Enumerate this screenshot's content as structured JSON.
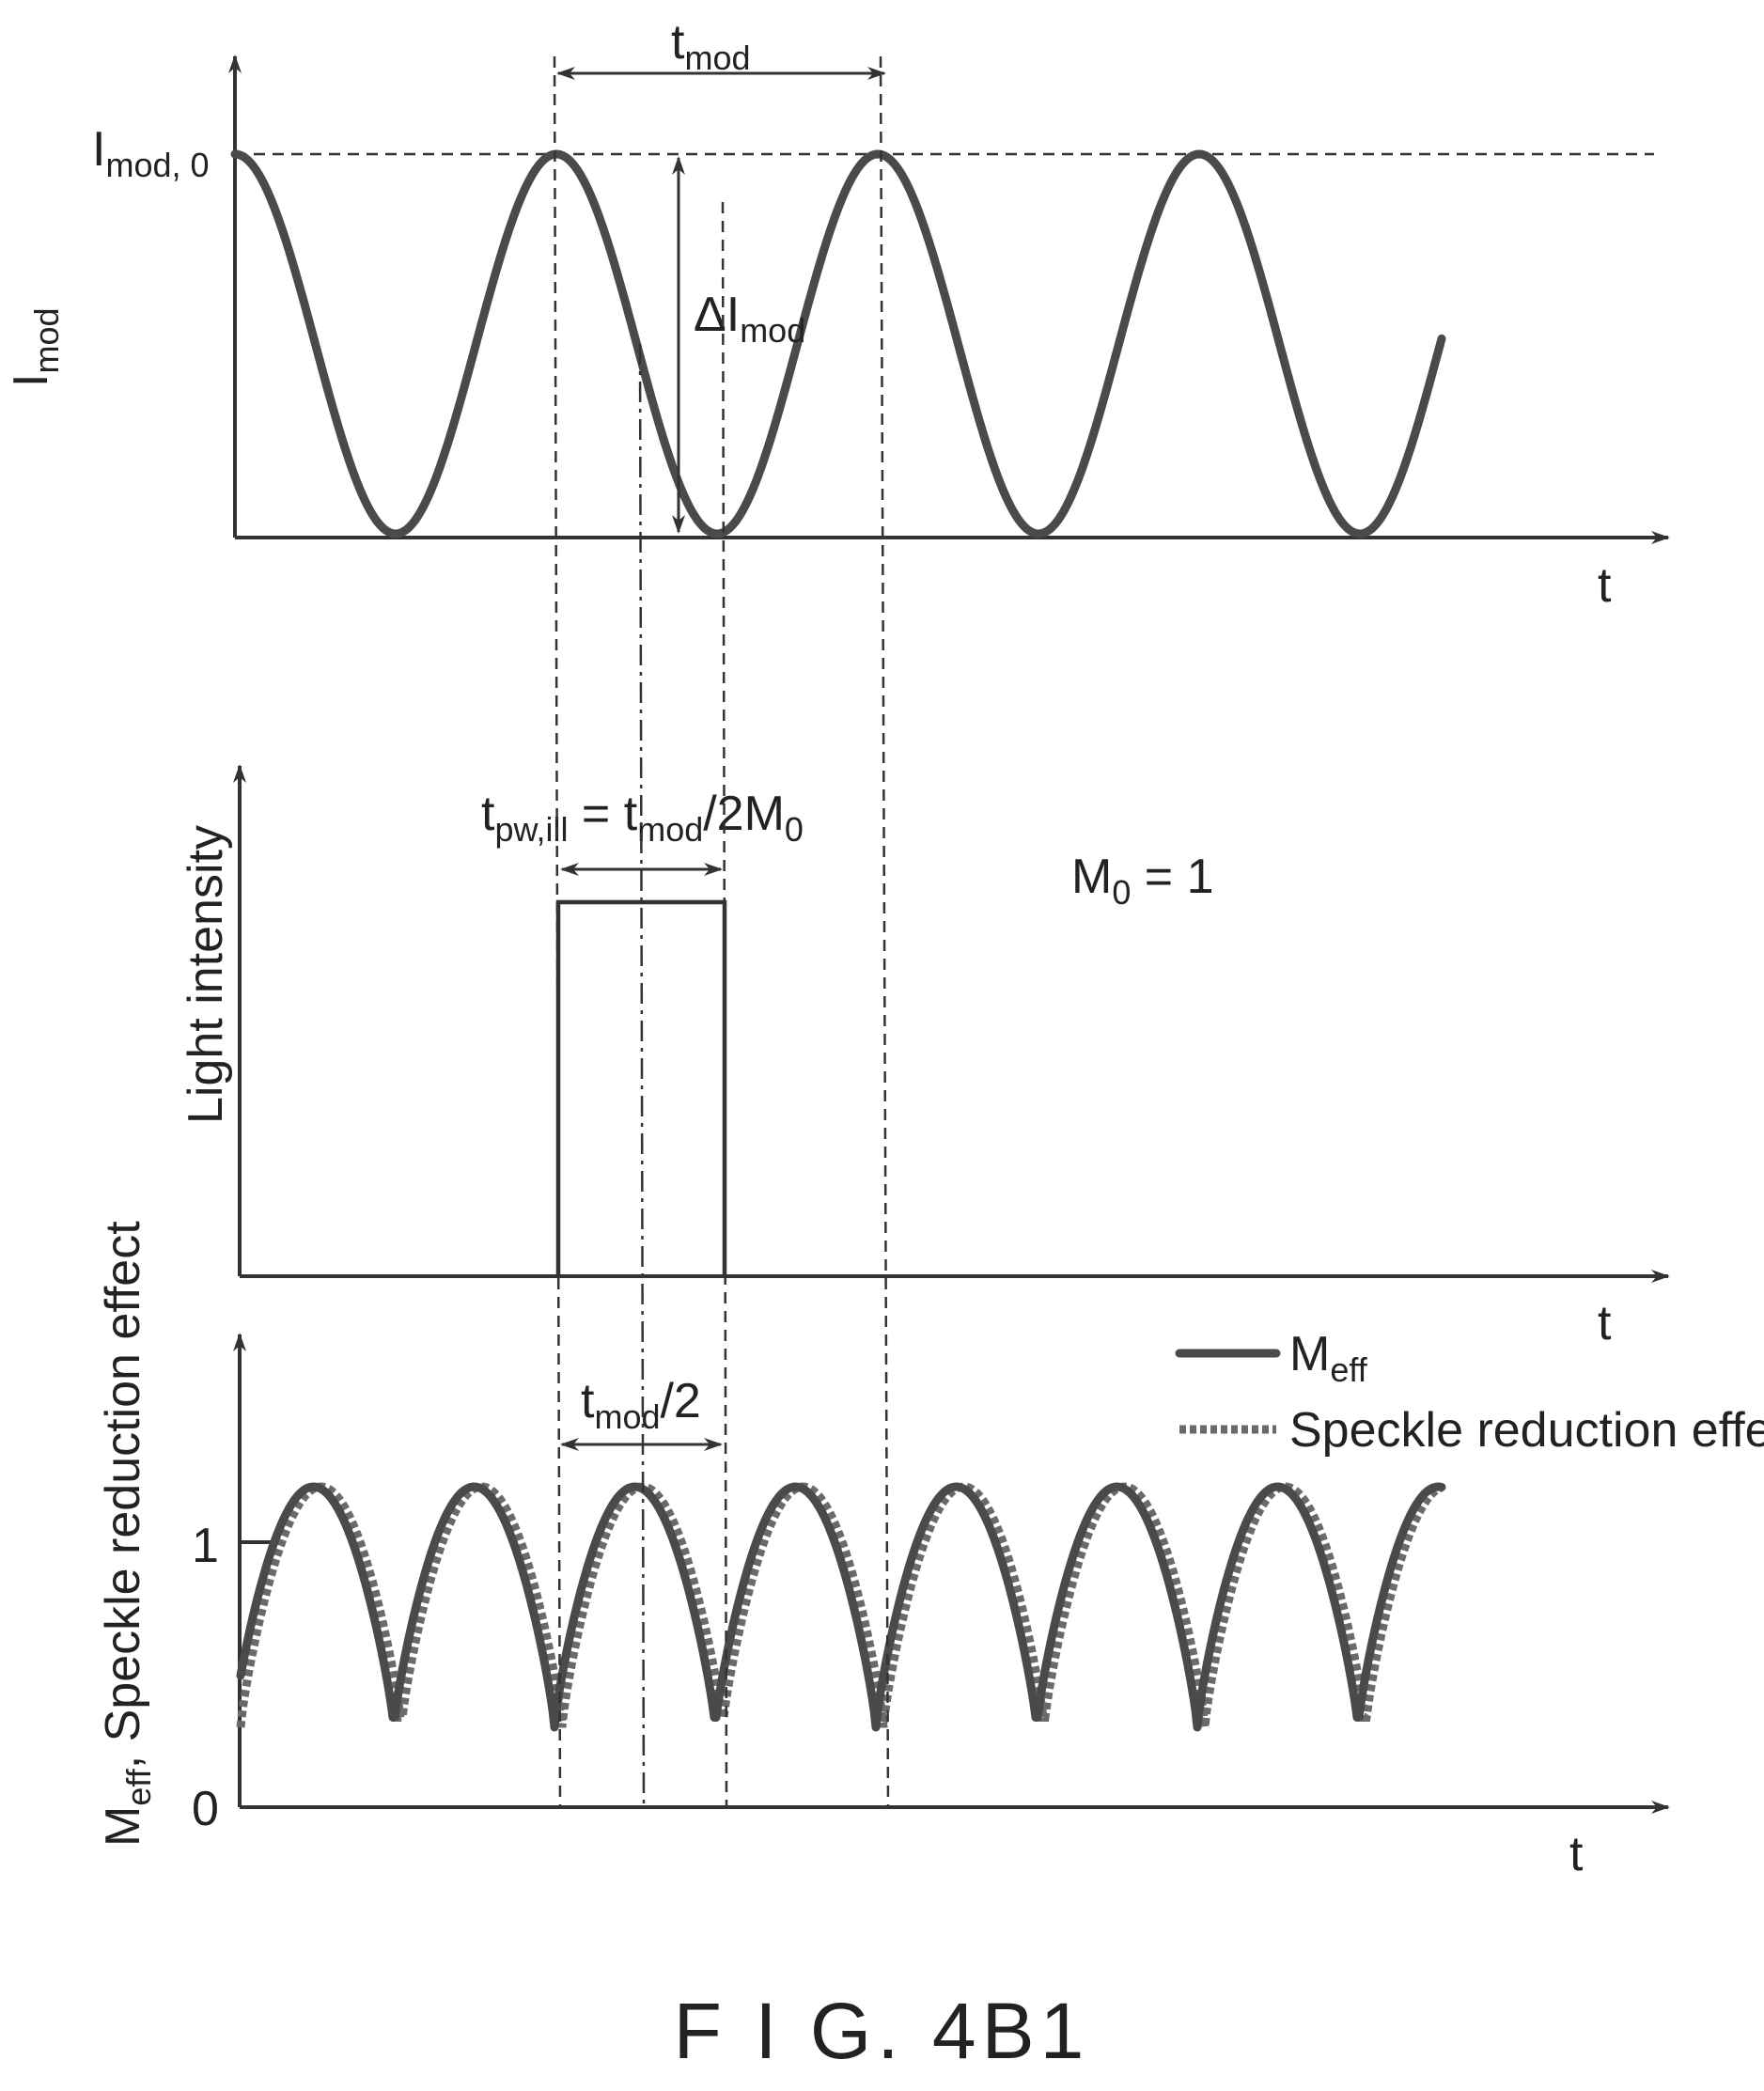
{
  "panels": {
    "top": {
      "ylabel": "I",
      "ylabel_sub": "mod",
      "y_tick": "I",
      "y_tick_sub": "mod, 0",
      "xlabel": "t",
      "period_label": "t",
      "period_label_sub": "mod",
      "amplitude_label": "ΔI",
      "amplitude_label_sub": "mod"
    },
    "middle": {
      "ylabel": "Light intensity",
      "xlabel": "t",
      "pulse_label_t": "t",
      "pulse_label_t_sub": "pw,ill",
      "pulse_label_eq": " = t",
      "pulse_label_mod_sub": "mod",
      "pulse_label_div": "/2M",
      "pulse_label_m_sub": "0",
      "m0_label": "M",
      "m0_label_sub": "0",
      "m0_value": " = 1"
    },
    "bottom": {
      "ylabel": "M",
      "ylabel_sub": "eff",
      "ylabel_rest": ", Speckle reduction effect",
      "y_ticks": [
        "1",
        "0"
      ],
      "xlabel": "t",
      "half_period_label": "t",
      "half_period_label_sub": "mod",
      "half_period_label_rest": "/2",
      "legend": [
        {
          "label": "M",
          "sub": "eff",
          "style": "solid"
        },
        {
          "label": "Speckle reduction effect",
          "sub": "",
          "style": "dotted"
        }
      ]
    }
  },
  "figure_label": "F I G. 4B1"
}
